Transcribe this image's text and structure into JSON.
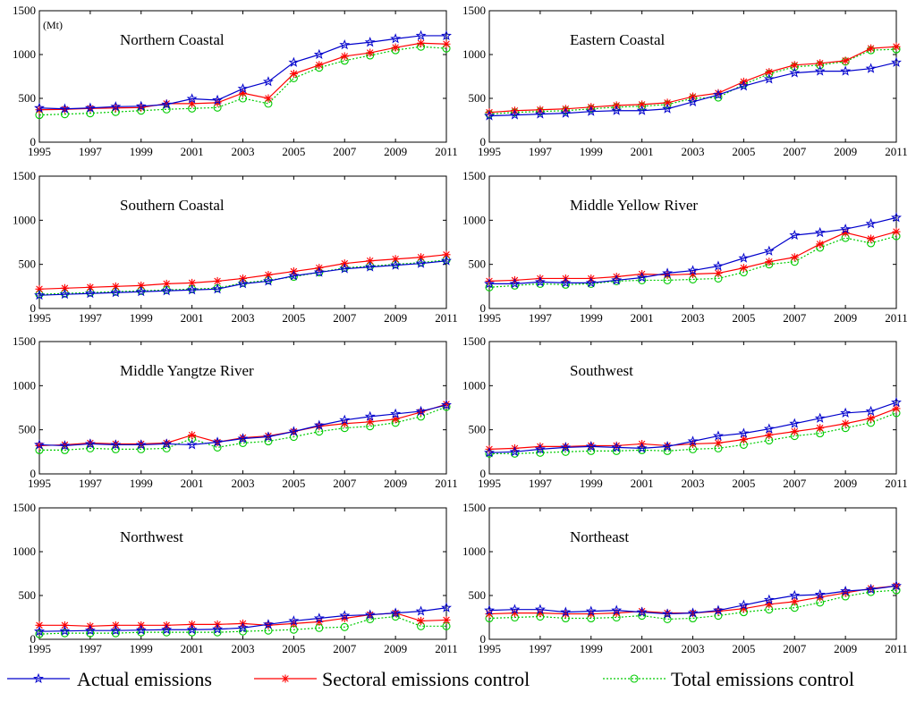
{
  "chart_data": [
    {
      "type": "line",
      "title": "Northern Coastal",
      "unit_label": "(Mt)",
      "x": [
        1995,
        1996,
        1997,
        1998,
        1999,
        2000,
        2001,
        2002,
        2003,
        2004,
        2005,
        2006,
        2007,
        2008,
        2009,
        2010,
        2011
      ],
      "xticks": [
        "1995",
        "1997",
        "1999",
        "2001",
        "2003",
        "2005",
        "2007",
        "2009",
        "2011"
      ],
      "yticks": [
        "0",
        "500",
        "1000",
        "1500"
      ],
      "ylim": [
        0,
        1500
      ],
      "series": [
        {
          "name": "Actual emissions",
          "values": [
            390,
            380,
            390,
            405,
            410,
            430,
            495,
            480,
            610,
            690,
            910,
            1000,
            1110,
            1140,
            1180,
            1215,
            1215
          ]
        },
        {
          "name": "Sectoral emissions control",
          "values": [
            370,
            375,
            385,
            390,
            395,
            440,
            440,
            450,
            560,
            500,
            780,
            880,
            980,
            1020,
            1080,
            1130,
            1120
          ]
        },
        {
          "name": "Total emissions control",
          "values": [
            310,
            320,
            330,
            345,
            360,
            375,
            385,
            395,
            500,
            440,
            730,
            850,
            930,
            990,
            1050,
            1090,
            1070
          ]
        }
      ]
    },
    {
      "type": "line",
      "title": "Eastern Coastal",
      "x": [
        1995,
        1996,
        1997,
        1998,
        1999,
        2000,
        2001,
        2002,
        2003,
        2004,
        2005,
        2006,
        2007,
        2008,
        2009,
        2010,
        2011
      ],
      "xticks": [
        "1995",
        "1997",
        "1999",
        "2001",
        "2003",
        "2005",
        "2007",
        "2009",
        "2011"
      ],
      "yticks": [
        "0",
        "500",
        "1000",
        "1500"
      ],
      "ylim": [
        0,
        1500
      ],
      "series": [
        {
          "name": "Actual emissions",
          "values": [
            300,
            310,
            320,
            330,
            350,
            360,
            360,
            380,
            460,
            540,
            640,
            720,
            790,
            810,
            810,
            840,
            910
          ]
        },
        {
          "name": "Sectoral emissions control",
          "values": [
            340,
            360,
            370,
            380,
            400,
            420,
            430,
            450,
            520,
            560,
            690,
            800,
            880,
            900,
            930,
            1070,
            1090
          ]
        },
        {
          "name": "Total emissions control",
          "values": [
            320,
            340,
            350,
            360,
            380,
            400,
            410,
            430,
            500,
            510,
            660,
            780,
            860,
            880,
            920,
            1050,
            1060
          ]
        }
      ]
    },
    {
      "type": "line",
      "title": "Southern Coastal",
      "x": [
        1995,
        1996,
        1997,
        1998,
        1999,
        2000,
        2001,
        2002,
        2003,
        2004,
        2005,
        2006,
        2007,
        2008,
        2009,
        2010,
        2011
      ],
      "xticks": [
        "1995",
        "1997",
        "1999",
        "2001",
        "2003",
        "2005",
        "2007",
        "2009",
        "2011"
      ],
      "yticks": [
        "0",
        "500",
        "1000",
        "1500"
      ],
      "ylim": [
        0,
        1500
      ],
      "series": [
        {
          "name": "Actual emissions",
          "values": [
            150,
            160,
            170,
            180,
            190,
            200,
            210,
            220,
            280,
            310,
            370,
            410,
            450,
            470,
            490,
            510,
            540
          ]
        },
        {
          "name": "Sectoral emissions control",
          "values": [
            220,
            230,
            240,
            250,
            260,
            280,
            290,
            310,
            340,
            380,
            420,
            460,
            510,
            540,
            560,
            580,
            610
          ]
        },
        {
          "name": "Total emissions control",
          "values": [
            160,
            170,
            180,
            190,
            200,
            210,
            220,
            230,
            290,
            320,
            360,
            410,
            460,
            480,
            500,
            520,
            550
          ]
        }
      ]
    },
    {
      "type": "line",
      "title": "Middle Yellow River",
      "x": [
        1995,
        1996,
        1997,
        1998,
        1999,
        2000,
        2001,
        2002,
        2003,
        2004,
        2005,
        2006,
        2007,
        2008,
        2009,
        2010,
        2011
      ],
      "xticks": [
        "1995",
        "1997",
        "1999",
        "2001",
        "2003",
        "2005",
        "2007",
        "2009",
        "2011"
      ],
      "yticks": [
        "0",
        "500",
        "1000",
        "1500"
      ],
      "ylim": [
        0,
        1500
      ],
      "series": [
        {
          "name": "Actual emissions",
          "values": [
            280,
            280,
            300,
            290,
            290,
            320,
            350,
            400,
            430,
            480,
            570,
            650,
            830,
            860,
            900,
            960,
            1030
          ]
        },
        {
          "name": "Sectoral emissions control",
          "values": [
            310,
            320,
            340,
            340,
            340,
            360,
            390,
            380,
            390,
            400,
            460,
            530,
            580,
            730,
            860,
            790,
            870
          ]
        },
        {
          "name": "Total emissions control",
          "values": [
            240,
            260,
            280,
            270,
            280,
            310,
            320,
            320,
            330,
            340,
            410,
            500,
            530,
            690,
            800,
            740,
            820
          ]
        }
      ]
    },
    {
      "type": "line",
      "title": "Middle Yangtze River",
      "x": [
        1995,
        1996,
        1997,
        1998,
        1999,
        2000,
        2001,
        2002,
        2003,
        2004,
        2005,
        2006,
        2007,
        2008,
        2009,
        2010,
        2011
      ],
      "xticks": [
        "1995",
        "1997",
        "1999",
        "2001",
        "2003",
        "2005",
        "2007",
        "2009",
        "2011"
      ],
      "yticks": [
        "0",
        "500",
        "1000",
        "1500"
      ],
      "ylim": [
        0,
        1500
      ],
      "series": [
        {
          "name": "Actual emissions",
          "values": [
            330,
            320,
            340,
            330,
            330,
            340,
            330,
            360,
            400,
            420,
            480,
            550,
            610,
            650,
            680,
            710,
            780
          ]
        },
        {
          "name": "Sectoral emissions control",
          "values": [
            320,
            330,
            350,
            340,
            340,
            350,
            440,
            360,
            410,
            430,
            480,
            540,
            570,
            590,
            620,
            700,
            790
          ]
        },
        {
          "name": "Total emissions control",
          "values": [
            270,
            270,
            290,
            280,
            280,
            290,
            400,
            300,
            350,
            370,
            420,
            480,
            520,
            540,
            580,
            650,
            760
          ]
        }
      ]
    },
    {
      "type": "line",
      "title": "Southwest",
      "x": [
        1995,
        1996,
        1997,
        1998,
        1999,
        2000,
        2001,
        2002,
        2003,
        2004,
        2005,
        2006,
        2007,
        2008,
        2009,
        2010,
        2011
      ],
      "xticks": [
        "1995",
        "1997",
        "1999",
        "2001",
        "2003",
        "2005",
        "2007",
        "2009",
        "2011"
      ],
      "yticks": [
        "0",
        "500",
        "1000",
        "1500"
      ],
      "ylim": [
        0,
        1500
      ],
      "series": [
        {
          "name": "Actual emissions",
          "values": [
            240,
            250,
            280,
            300,
            310,
            300,
            290,
            310,
            370,
            430,
            460,
            510,
            570,
            630,
            690,
            710,
            810
          ]
        },
        {
          "name": "Sectoral emissions control",
          "values": [
            280,
            290,
            310,
            310,
            320,
            320,
            340,
            320,
            340,
            350,
            390,
            440,
            480,
            520,
            570,
            630,
            740
          ]
        },
        {
          "name": "Total emissions control",
          "values": [
            230,
            230,
            240,
            250,
            260,
            260,
            270,
            260,
            280,
            290,
            330,
            380,
            430,
            460,
            520,
            580,
            690
          ]
        }
      ]
    },
    {
      "type": "line",
      "title": "Northwest",
      "x": [
        1995,
        1996,
        1997,
        1998,
        1999,
        2000,
        2001,
        2002,
        2003,
        2004,
        2005,
        2006,
        2007,
        2008,
        2009,
        2010,
        2011
      ],
      "xticks": [
        "1995",
        "1997",
        "1999",
        "2001",
        "2003",
        "2005",
        "2007",
        "2009",
        "2011"
      ],
      "yticks": [
        "0",
        "500",
        "1000",
        "1500"
      ],
      "ylim": [
        0,
        1500
      ],
      "series": [
        {
          "name": "Actual emissions",
          "values": [
            90,
            95,
            100,
            100,
            105,
            110,
            110,
            115,
            130,
            170,
            210,
            240,
            270,
            280,
            300,
            320,
            360
          ]
        },
        {
          "name": "Sectoral emissions control",
          "values": [
            160,
            160,
            150,
            160,
            160,
            160,
            170,
            170,
            180,
            160,
            180,
            200,
            240,
            280,
            300,
            210,
            220
          ]
        },
        {
          "name": "Total emissions control",
          "values": [
            60,
            70,
            70,
            70,
            80,
            80,
            80,
            80,
            90,
            100,
            110,
            130,
            140,
            230,
            260,
            150,
            150
          ]
        }
      ]
    },
    {
      "type": "line",
      "title": "Northeast",
      "x": [
        1995,
        1996,
        1997,
        1998,
        1999,
        2000,
        2001,
        2002,
        2003,
        2004,
        2005,
        2006,
        2007,
        2008,
        2009,
        2010,
        2011
      ],
      "xticks": [
        "1995",
        "1997",
        "1999",
        "2001",
        "2003",
        "2005",
        "2007",
        "2009",
        "2011"
      ],
      "yticks": [
        "0",
        "500",
        "1000",
        "1500"
      ],
      "ylim": [
        0,
        1500
      ],
      "series": [
        {
          "name": "Actual emissions",
          "values": [
            330,
            340,
            340,
            310,
            320,
            330,
            310,
            290,
            300,
            330,
            390,
            450,
            500,
            510,
            550,
            570,
            610
          ]
        },
        {
          "name": "Sectoral emissions control",
          "values": [
            290,
            300,
            300,
            290,
            290,
            300,
            320,
            300,
            300,
            320,
            350,
            400,
            430,
            480,
            530,
            580,
            610
          ]
        },
        {
          "name": "Total emissions control",
          "values": [
            240,
            250,
            260,
            240,
            240,
            250,
            270,
            230,
            240,
            270,
            310,
            340,
            360,
            420,
            490,
            540,
            560
          ]
        }
      ]
    }
  ],
  "legend": [
    {
      "label": "Actual emissions",
      "color": "#0000cc",
      "marker": "star",
      "dash": "solid"
    },
    {
      "label": "Sectoral emissions control",
      "color": "#ff0000",
      "marker": "asterisk",
      "dash": "solid"
    },
    {
      "label": "Total emissions control",
      "color": "#00cc00",
      "marker": "circle",
      "dash": "dotted"
    }
  ]
}
